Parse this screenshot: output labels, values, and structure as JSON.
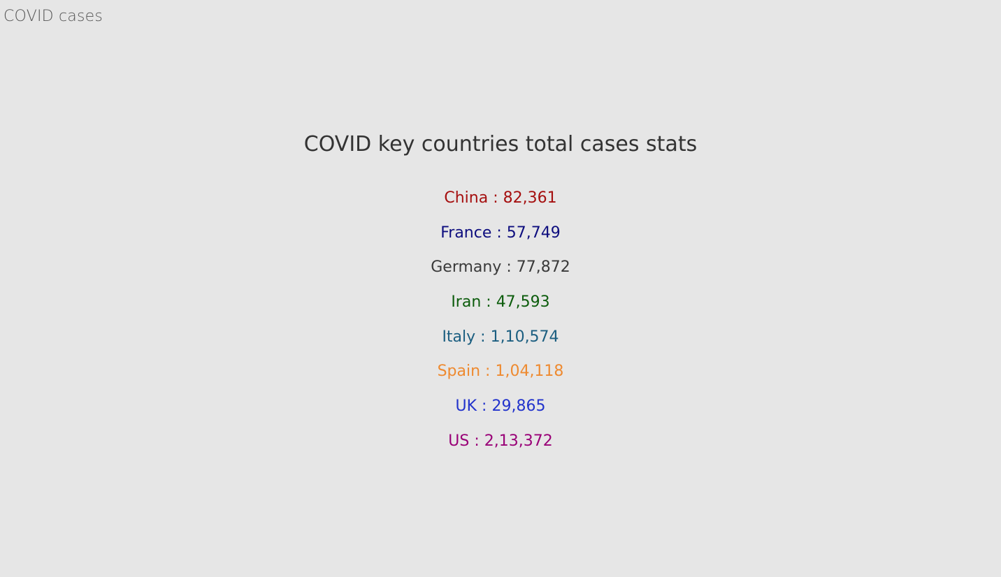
{
  "app": {
    "title": "COVID cases"
  },
  "main": {
    "heading": "COVID key countries total cases stats",
    "separator": " : ",
    "stats": [
      {
        "country": "China",
        "cases": "82,361",
        "color": "#a50f0f"
      },
      {
        "country": "France",
        "cases": "57,749",
        "color": "#0d0d7e"
      },
      {
        "country": "Germany",
        "cases": "77,872",
        "color": "#3a3a3a"
      },
      {
        "country": "Iran",
        "cases": "47,593",
        "color": "#0c5c0c"
      },
      {
        "country": "Italy",
        "cases": "1,10,574",
        "color": "#1b5e80"
      },
      {
        "country": "Spain",
        "cases": "1,04,118",
        "color": "#ee8a30"
      },
      {
        "country": "UK",
        "cases": "29,865",
        "color": "#2233cc"
      },
      {
        "country": "US",
        "cases": "2,13,372",
        "color": "#990077"
      }
    ]
  }
}
